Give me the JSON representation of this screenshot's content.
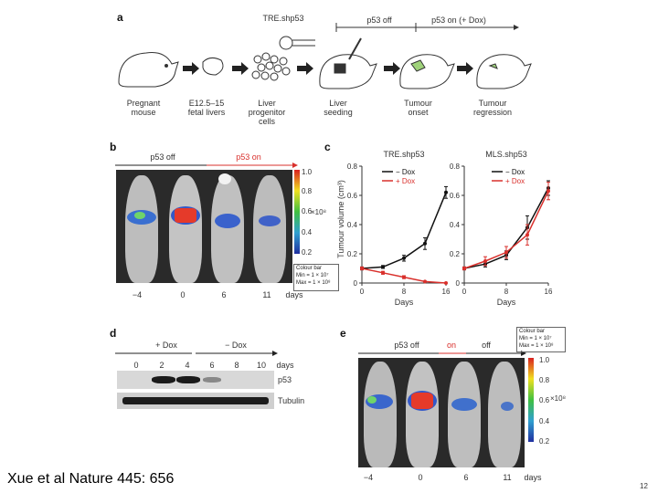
{
  "panel_a": {
    "letter": "a",
    "construct": "TRE.shp53",
    "p53_off": "p53 off",
    "p53_on": "p53 on (+ Dox)",
    "steps": [
      {
        "line1": "Pregnant",
        "line2": "mouse",
        "line3": ""
      },
      {
        "line1": "E12.5–15",
        "line2": "fetal livers",
        "line3": ""
      },
      {
        "line1": "Liver",
        "line2": "progenitor",
        "line3": "cells"
      },
      {
        "line1": "Liver",
        "line2": "seeding",
        "line3": ""
      },
      {
        "line1": "Tumour",
        "line2": "onset",
        "line3": ""
      },
      {
        "line1": "Tumour",
        "line2": "regression",
        "line3": ""
      }
    ]
  },
  "panel_b": {
    "letter": "b",
    "p53_off": "p53 off",
    "p53_on": "p53 on",
    "days": [
      "−4",
      "0",
      "6",
      "11"
    ],
    "days_label": "days",
    "colorbar_ticks": [
      "1.0",
      "0.8",
      "0.6",
      "0.4",
      "0.2"
    ],
    "colorbar_unit": "×10⁸",
    "colour_bar_title": "Colour bar",
    "colour_bar_min": "Min = 1 × 10⁷",
    "colour_bar_max": "Max = 1 × 10⁸"
  },
  "panel_c": {
    "letter": "c",
    "ylabel": "Tumour volume (cm³)",
    "xlabel": "Days",
    "left_title": "TRE.shp53",
    "right_title": "MLS.shp53",
    "legend_minus": "− Dox",
    "legend_plus": "+ Dox",
    "yticks": [
      "0",
      "0.2",
      "0.4",
      "0.6",
      "0.8"
    ],
    "xticks": [
      "0",
      "8",
      "16"
    ],
    "colors": {
      "minus_dox": "#111111",
      "plus_dox": "#d9302c"
    }
  },
  "chart_data": [
    {
      "type": "line",
      "title": "TRE.shp53",
      "xlabel": "Days",
      "ylabel": "Tumour volume (cm³)",
      "xlim": [
        0,
        16
      ],
      "ylim": [
        0,
        0.8
      ],
      "series": [
        {
          "name": "− Dox",
          "x": [
            0,
            4,
            8,
            12,
            16
          ],
          "y": [
            0.1,
            0.11,
            0.17,
            0.27,
            0.62
          ],
          "err": [
            0.01,
            0.01,
            0.02,
            0.04,
            0.04
          ]
        },
        {
          "name": "+ Dox",
          "x": [
            0,
            4,
            8,
            12,
            16
          ],
          "y": [
            0.1,
            0.07,
            0.04,
            0.01,
            0.0
          ],
          "err": [
            0.01,
            0.01,
            0.01,
            0.0,
            0.0
          ]
        }
      ]
    },
    {
      "type": "line",
      "title": "MLS.shp53",
      "xlabel": "Days",
      "ylabel": "Tumour volume (cm³)",
      "xlim": [
        0,
        16
      ],
      "ylim": [
        0,
        0.8
      ],
      "series": [
        {
          "name": "− Dox",
          "x": [
            0,
            4,
            8,
            12,
            16
          ],
          "y": [
            0.1,
            0.13,
            0.19,
            0.38,
            0.65
          ],
          "err": [
            0.01,
            0.02,
            0.03,
            0.08,
            0.05
          ]
        },
        {
          "name": "+ Dox",
          "x": [
            0,
            4,
            8,
            12,
            16
          ],
          "y": [
            0.1,
            0.15,
            0.21,
            0.33,
            0.63
          ],
          "err": [
            0.01,
            0.03,
            0.04,
            0.07,
            0.06
          ]
        }
      ]
    }
  ],
  "panel_d": {
    "letter": "d",
    "plus_dox": "+ Dox",
    "minus_dox": "− Dox",
    "days": [
      "0",
      "2",
      "4",
      "6",
      "8",
      "10"
    ],
    "days_label": "days",
    "bands": [
      "p53",
      "Tubulin"
    ]
  },
  "panel_e": {
    "letter": "e",
    "p53_off": "p53 off",
    "on": "on",
    "off": "off",
    "days": [
      "−4",
      "0",
      "6",
      "11"
    ],
    "days_label": "days",
    "colour_bar_title": "Colour bar",
    "colour_bar_min": "Min = 1 × 10⁷",
    "colour_bar_max": "Max = 1 × 10⁸",
    "colorbar_ticks": [
      "1.0",
      "0.8",
      "0.6",
      "0.4",
      "0.2"
    ],
    "colorbar_unit": "×10⁸"
  },
  "footer": {
    "citation": "Xue et al Nature 445: 656",
    "page": "12"
  }
}
